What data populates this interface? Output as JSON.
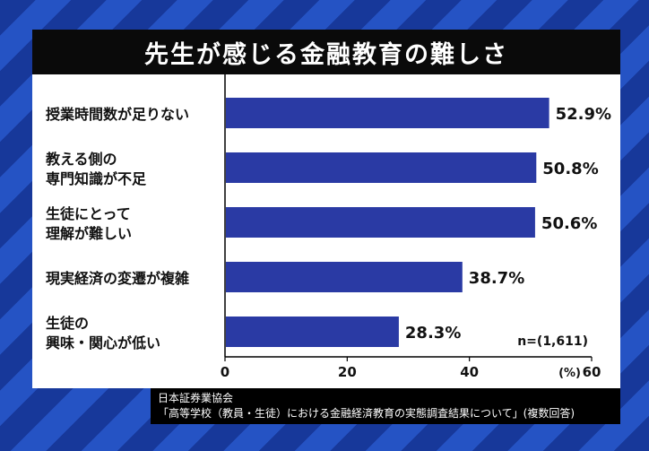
{
  "title": "先生が感じる金融教育の難しさ",
  "chart_data": {
    "type": "bar",
    "orientation": "horizontal",
    "title": "先生が感じる金融教育の難しさ",
    "categories": [
      [
        "授業時間数が足りない"
      ],
      [
        "教える側の",
        "専門知識が不足"
      ],
      [
        "生徒にとって",
        "理解が難しい"
      ],
      [
        "現実経済の変遷が複雑"
      ],
      [
        "生徒の",
        "興味・関心が低い"
      ]
    ],
    "values": [
      52.9,
      50.8,
      50.6,
      38.7,
      28.3
    ],
    "value_labels": [
      "52.9%",
      "50.8%",
      "50.6%",
      "38.7%",
      "28.3%"
    ],
    "xlim": [
      0,
      60
    ],
    "xticks": [
      0,
      20,
      40,
      60
    ],
    "xtick_labels": [
      "0",
      "20",
      "40",
      "60"
    ],
    "unit_label": "(%)",
    "n_label": "n=(1,611)",
    "bar_color": "#2a3aa4"
  },
  "source": {
    "line1": "日本証券業協会",
    "line2": "「高等学校（教員・生徒）における金融経済教育の実態調査結果について」(複数回答)"
  }
}
